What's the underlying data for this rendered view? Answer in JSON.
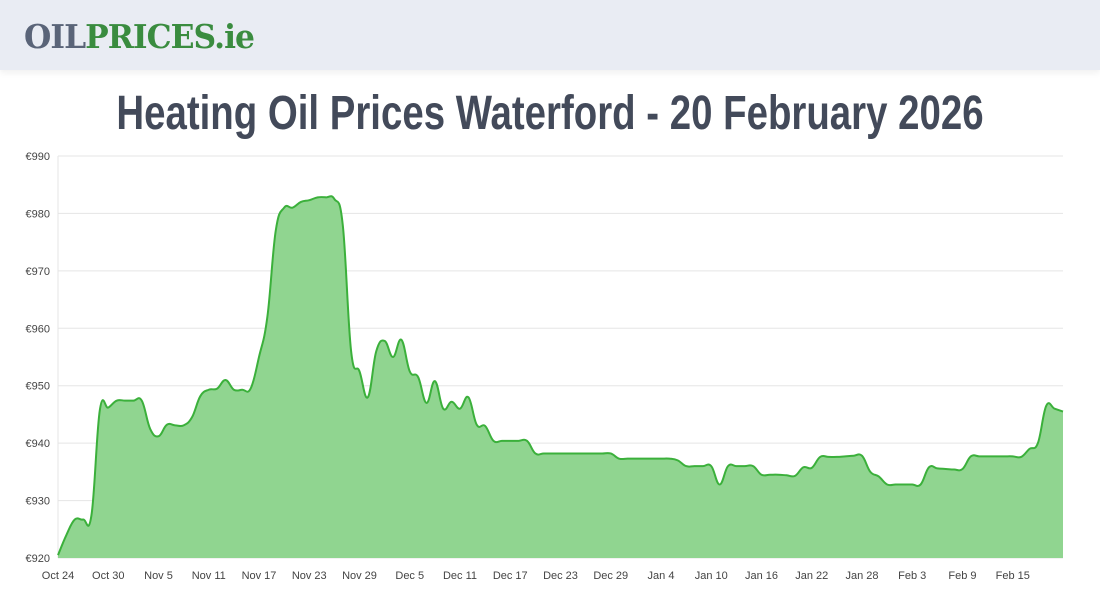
{
  "header": {
    "logo_text": "OILPRICES.ie",
    "logo_part1": "OIL",
    "logo_part2": "PRICES.ie"
  },
  "page": {
    "title": "Heating Oil Prices Waterford - 20 February 2026"
  },
  "colors": {
    "line": "#3bb03b",
    "fill": "#90d590",
    "grid": "#e5e5e5",
    "title": "#434a5a"
  },
  "chart_data": {
    "type": "area",
    "title": "",
    "xlabel": "",
    "ylabel": "",
    "ylim": [
      920,
      990
    ],
    "grid": true,
    "legend": "none",
    "y_ticks": [
      "€920",
      "€930",
      "€940",
      "€950",
      "€960",
      "€970",
      "€980",
      "€990"
    ],
    "x_ticks": [
      "Oct 24",
      "Oct 30",
      "Nov 5",
      "Nov 11",
      "Nov 17",
      "Nov 23",
      "Nov 29",
      "Dec 5",
      "Dec 11",
      "Dec 17",
      "Dec 23",
      "Dec 29",
      "Jan 4",
      "Jan 10",
      "Jan 16",
      "Jan 22",
      "Jan 28",
      "Feb 3",
      "Feb 9",
      "Feb 15"
    ],
    "x_start": "Oct 24",
    "x_end": "Feb 20",
    "values": [
      920.5,
      924,
      926.7,
      926.7,
      927.5,
      945.8,
      946.2,
      947.4,
      947.4,
      947.4,
      947.4,
      942.5,
      941.2,
      943.2,
      943.1,
      943.1,
      944.5,
      948.2,
      949.3,
      949.5,
      951,
      949.3,
      949.3,
      949.5,
      955,
      962,
      977,
      981,
      981,
      982,
      982.3,
      982.8,
      982.8,
      982.5,
      978,
      956,
      952.5,
      948,
      956,
      957.8,
      955,
      958,
      952.5,
      951.5,
      947,
      950.8,
      946,
      947.2,
      946,
      948,
      943.2,
      943,
      940.4,
      940.4,
      940.4,
      940.4,
      940.4,
      938.2,
      938.2,
      938.2,
      938.2,
      938.2,
      938.2,
      938.2,
      938.2,
      938.2,
      938.2,
      937.3,
      937.3,
      937.3,
      937.3,
      937.3,
      937.3,
      937.3,
      937.0,
      936.0,
      936.0,
      936.0,
      936.0,
      932.8,
      936.0,
      936.0,
      936.0,
      936.0,
      934.5,
      934.5,
      934.5,
      934.4,
      934.3,
      935.8,
      935.7,
      937.6,
      937.6,
      937.6,
      937.7,
      937.8,
      937.8,
      935,
      934.2,
      932.8,
      932.8,
      932.8,
      932.8,
      932.8,
      935.8,
      935.6,
      935.5,
      935.4,
      935.5,
      937.7,
      937.7,
      937.7,
      937.7,
      937.7,
      937.7,
      937.6,
      939,
      940,
      946.5,
      946,
      945.5
    ]
  }
}
